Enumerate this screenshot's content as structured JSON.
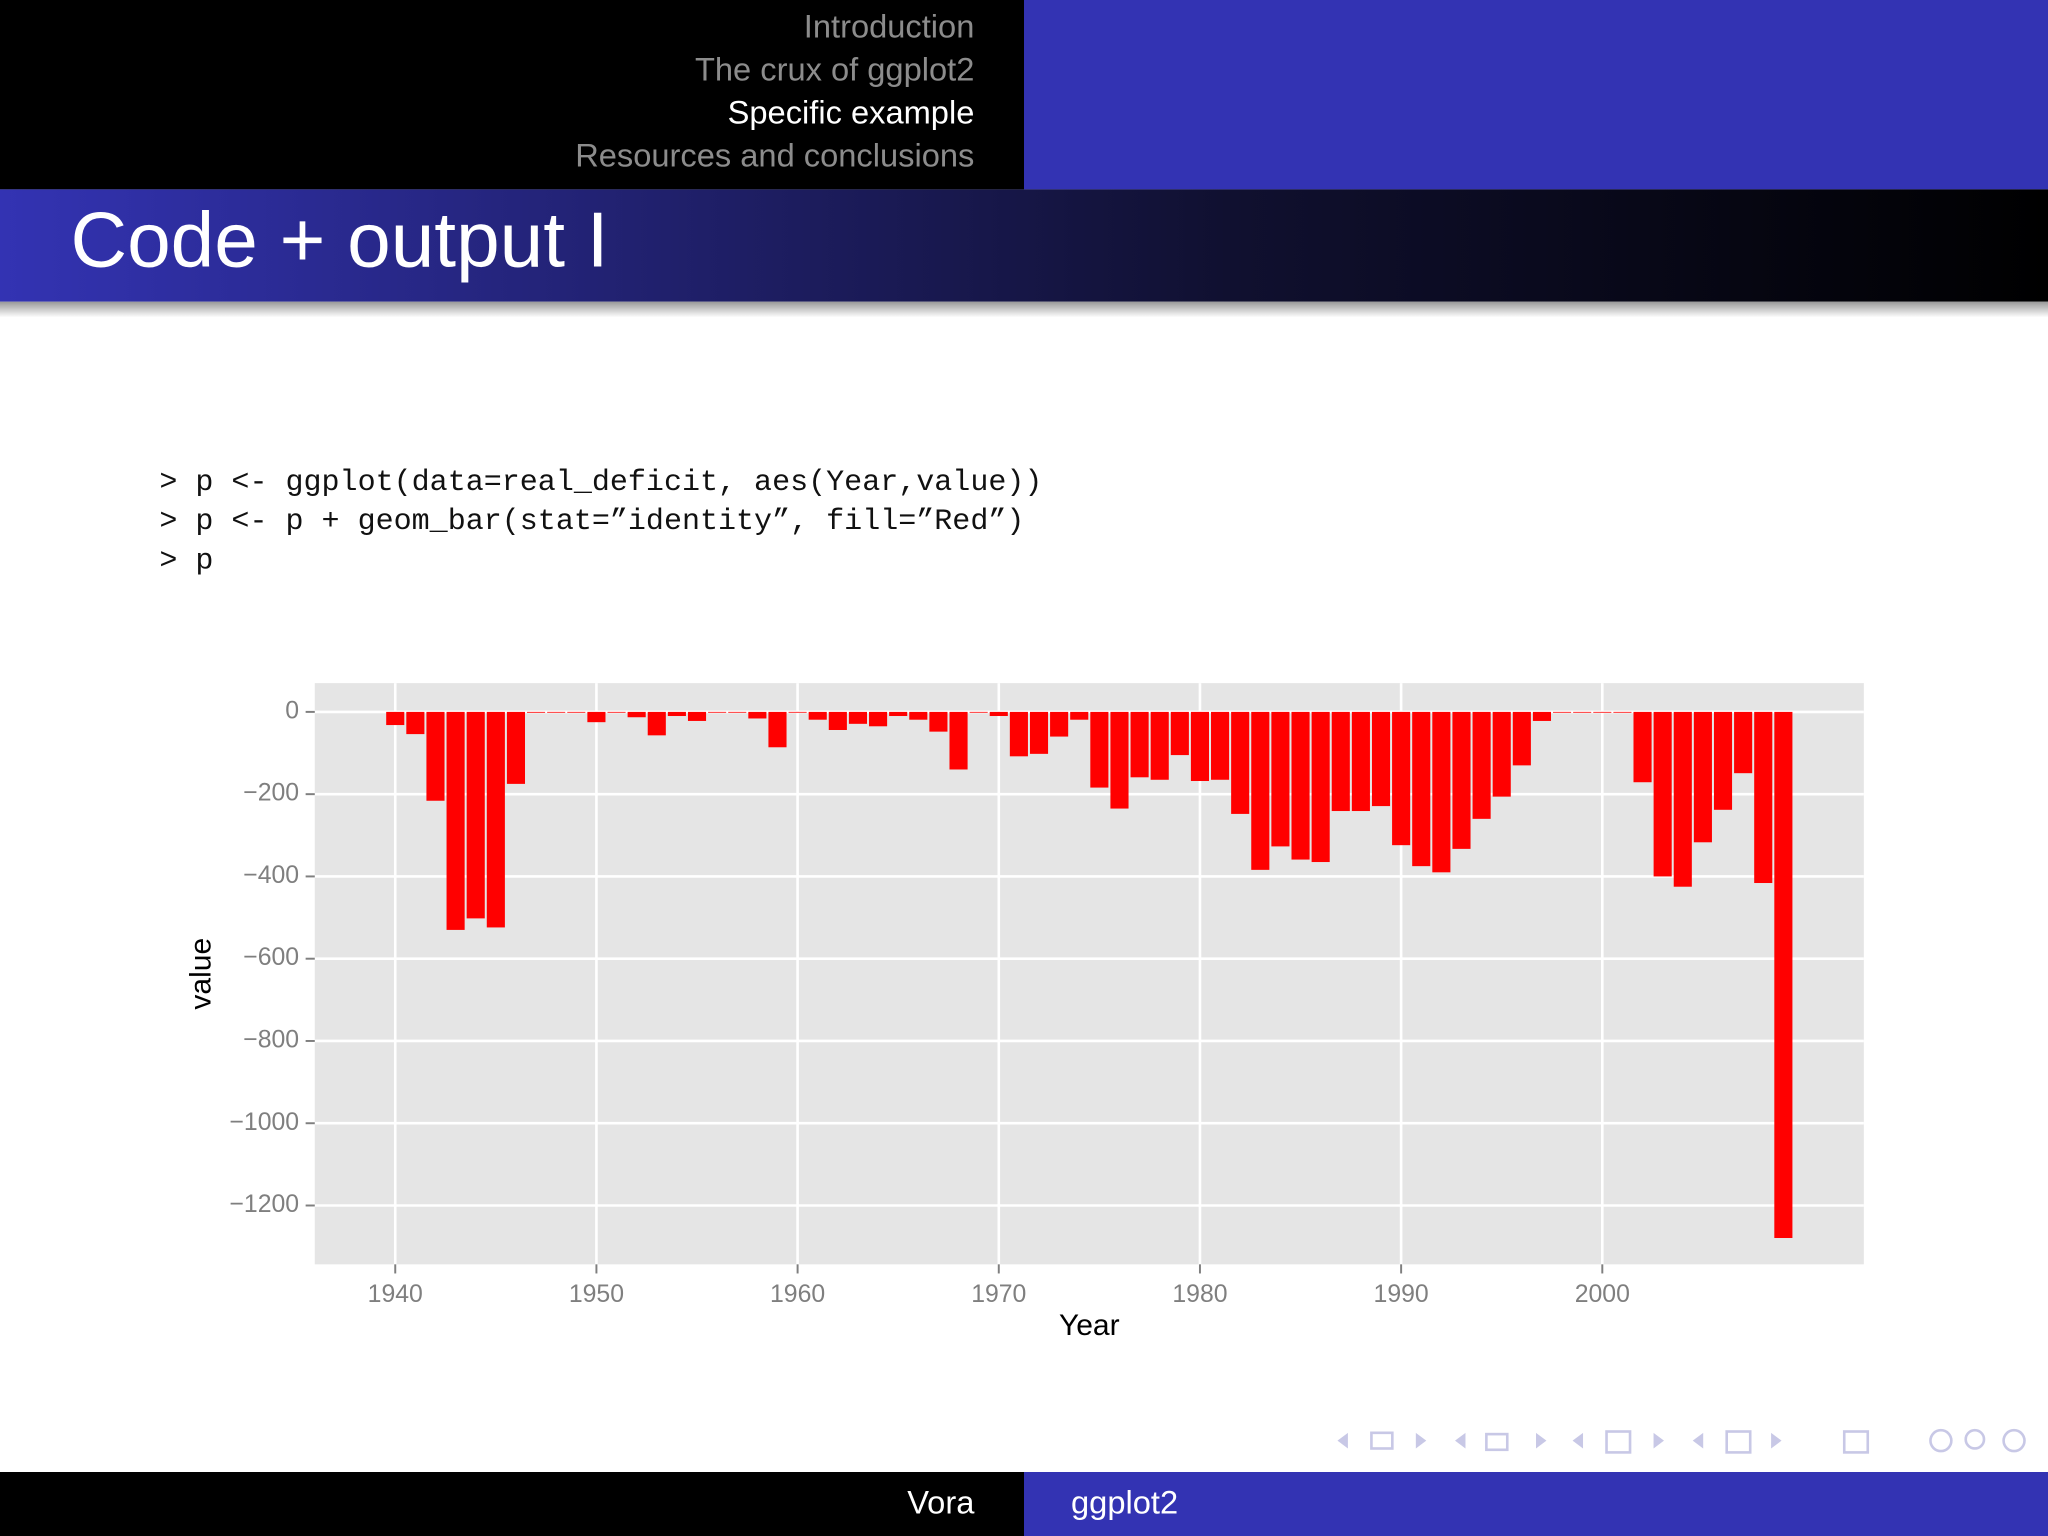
{
  "header": {
    "sections": [
      "Introduction",
      "The crux of ggplot2",
      "Specific example",
      "Resources and conclusions"
    ],
    "current": 2
  },
  "title": "Code + output I",
  "code": [
    "> p <- ggplot(data=real_deficit, aes(Year,value))",
    "> p <- p + geom_bar(stat=”identity”, fill=”Red”)",
    "> p"
  ],
  "footer": {
    "author": "Vora",
    "talk": "ggplot2"
  },
  "chart_data": {
    "type": "bar",
    "xlabel": "Year",
    "ylabel": "value",
    "color": "#ff0000",
    "grid": true,
    "x": [
      1940,
      1941,
      1942,
      1943,
      1944,
      1945,
      1946,
      1947,
      1948,
      1949,
      1950,
      1951,
      1952,
      1953,
      1954,
      1955,
      1956,
      1957,
      1958,
      1959,
      1960,
      1961,
      1962,
      1963,
      1964,
      1965,
      1966,
      1967,
      1968,
      1969,
      1970,
      1971,
      1972,
      1973,
      1974,
      1975,
      1976,
      1977,
      1978,
      1979,
      1980,
      1981,
      1982,
      1983,
      1984,
      1985,
      1986,
      1987,
      1988,
      1989,
      1990,
      1991,
      1992,
      1993,
      1994,
      1995,
      1996,
      1997,
      1998,
      1999,
      2000,
      2001,
      2002,
      2003,
      2004,
      2005,
      2006,
      2007,
      2008,
      2009
    ],
    "values": [
      -32,
      -54,
      -216,
      -530,
      -502,
      -524,
      -175,
      -2,
      -1,
      -1,
      -25,
      0,
      -13,
      -57,
      -10,
      -22,
      -1,
      -1,
      -16,
      -86,
      -1,
      -19,
      -44,
      -29,
      -35,
      -10,
      -19,
      -48,
      -140,
      -1,
      -10,
      -108,
      -102,
      -60,
      -19,
      -184,
      -235,
      -159,
      -165,
      -105,
      -168,
      -165,
      -248,
      -384,
      -327,
      -359,
      -365,
      -241,
      -241,
      -229,
      -324,
      -375,
      -390,
      -333,
      -260,
      -206,
      -130,
      -22,
      0,
      0,
      0,
      0,
      -171,
      -400,
      -425,
      -317,
      -238,
      -149,
      -416,
      -1279
    ],
    "xlim": [
      1936,
      2013
    ],
    "xticks": [
      1940,
      1950,
      1960,
      1970,
      1980,
      1990,
      2000
    ],
    "ylim": [
      -1343,
      70
    ],
    "yticks": [
      0,
      {
        "value": -200,
        "label": "−200"
      },
      {
        "value": -400,
        "label": "−400"
      },
      {
        "value": -600,
        "label": "−600"
      },
      {
        "value": -800,
        "label": "−800"
      },
      {
        "value": -1000,
        "label": "−1000"
      },
      {
        "value": -1200,
        "label": "−1200"
      }
    ]
  }
}
